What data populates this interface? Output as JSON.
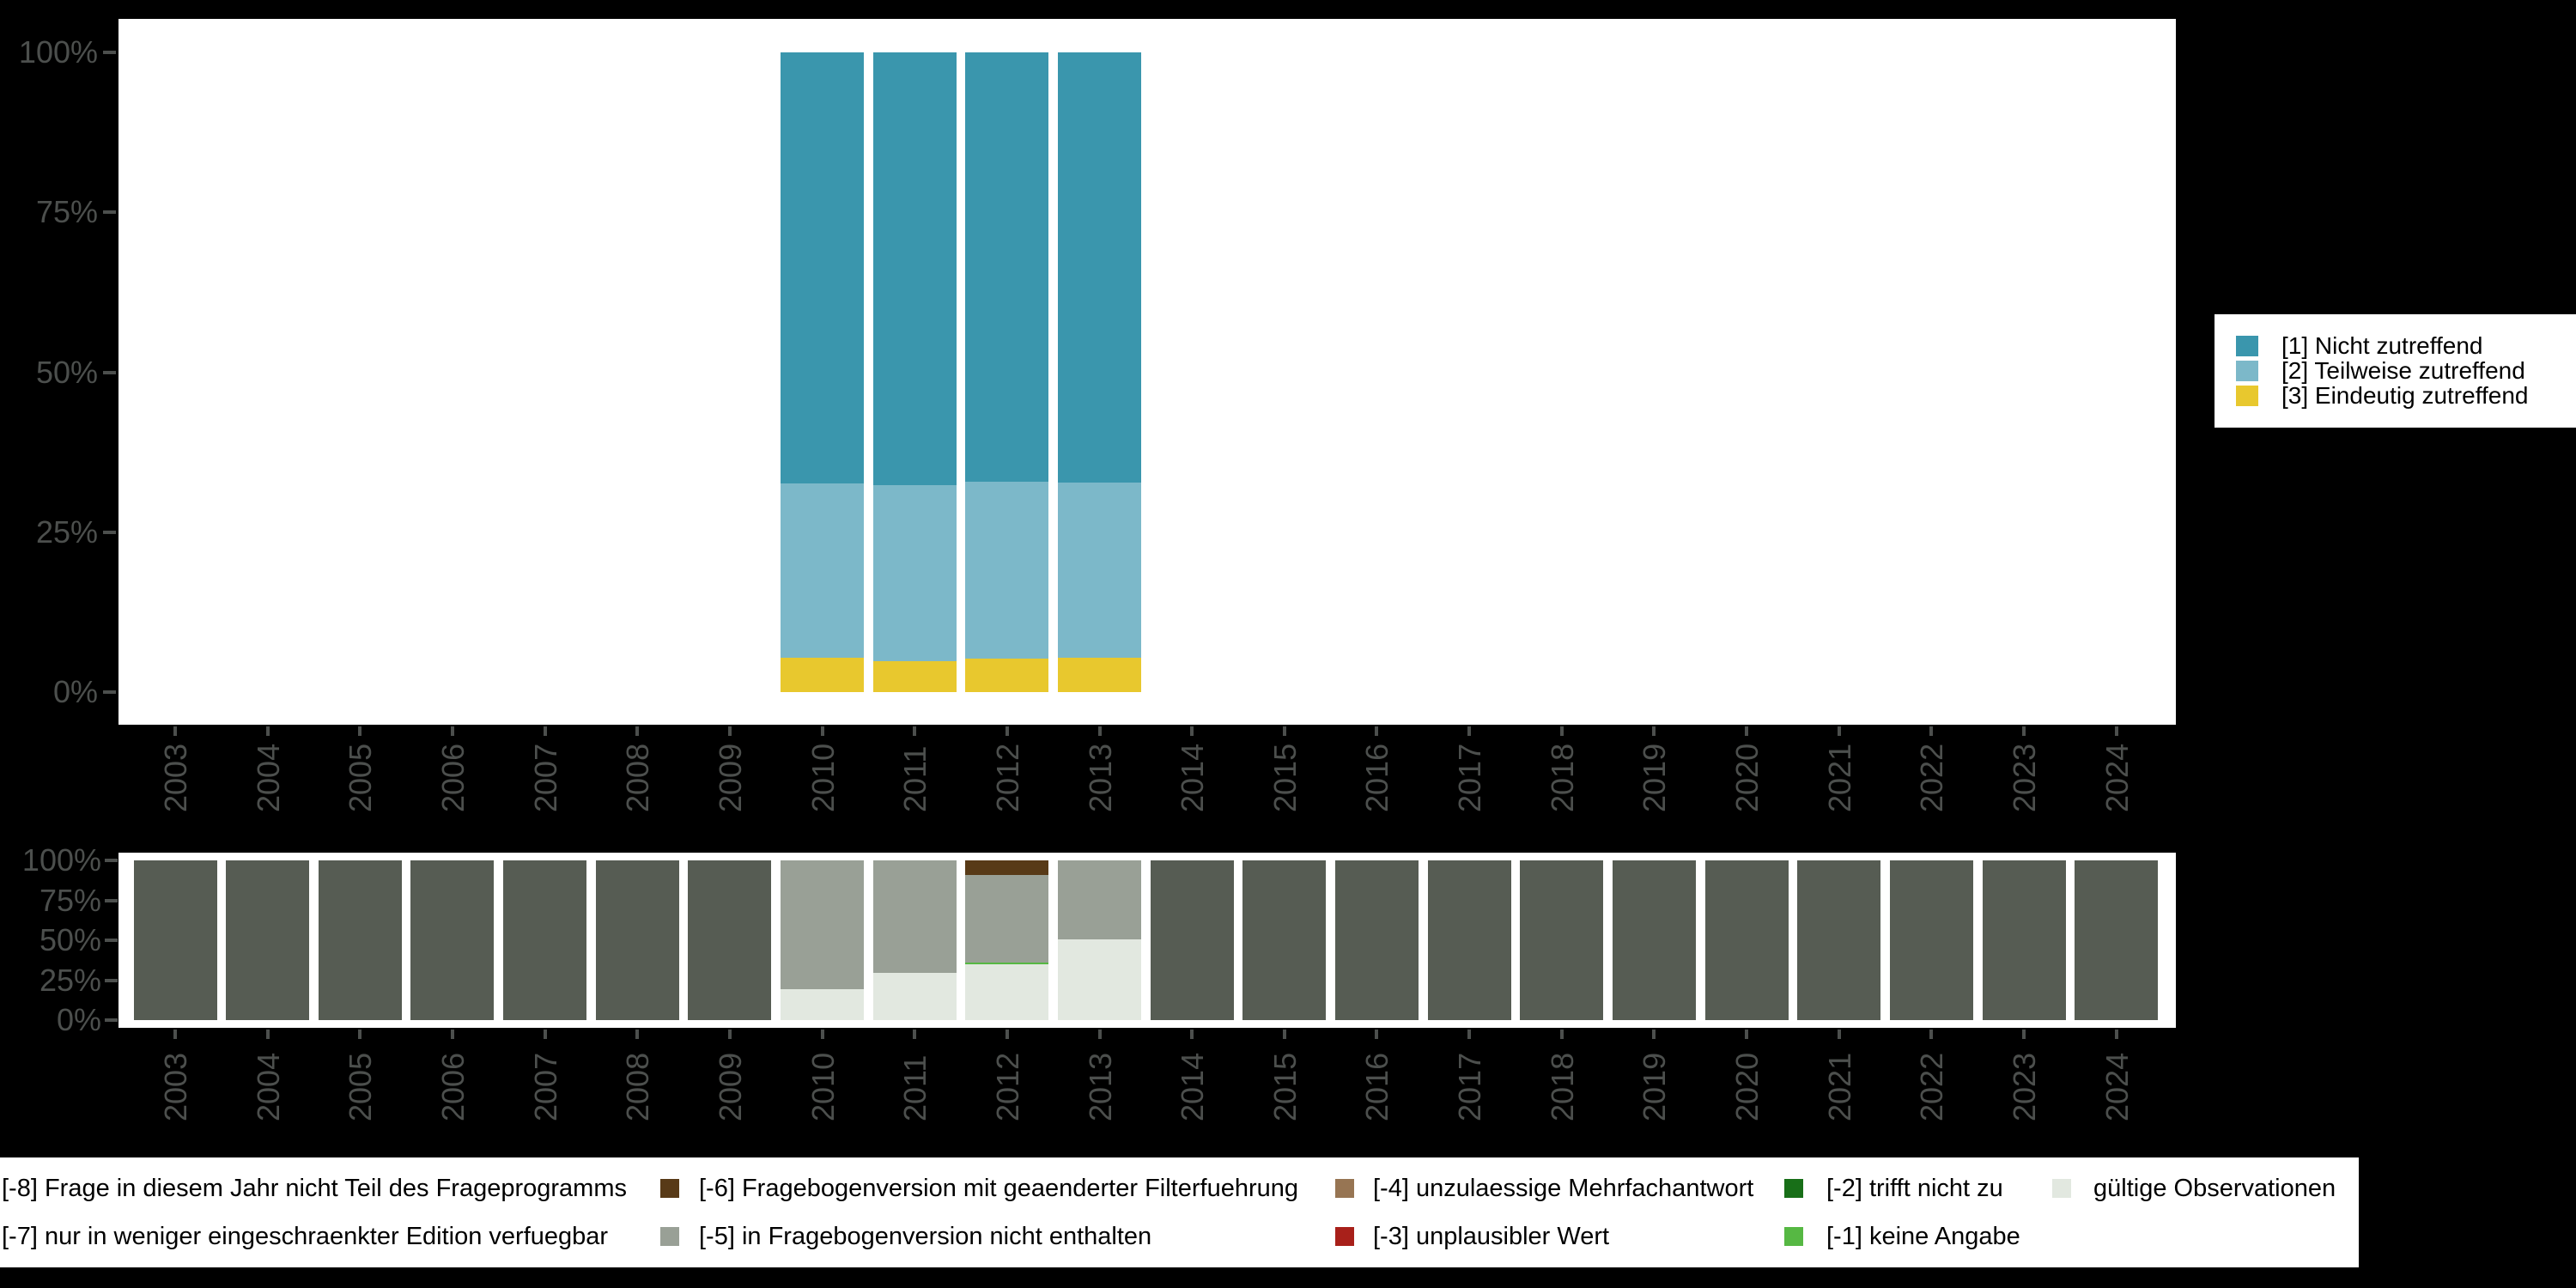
{
  "background": "#000000",
  "axis_text_color": "#4c4f4d",
  "palette": {
    "1": "#3a96ad",
    "2": "#7cb8c9",
    "3": "#e8c82e",
    "-8": "#565c53",
    "-6": "#583a17",
    "-5": "#99a096",
    "-4": "#977553",
    "-3": "#a8201a",
    "-2": "#186f18",
    "-1": "#56b843",
    "valid": "#e2e8e0"
  },
  "chart_data": [
    {
      "type": "bar",
      "subtype": "stacked-percent",
      "title": "",
      "xlabel": "",
      "ylabel": "",
      "grid": false,
      "legend_position": "right",
      "ylim": [
        0,
        100
      ],
      "y_ticks": [
        "0%",
        "25%",
        "50%",
        "75%",
        "100%"
      ],
      "categories": [
        "2003",
        "2004",
        "2005",
        "2006",
        "2007",
        "2008",
        "2009",
        "2010",
        "2011",
        "2012",
        "2013",
        "2014",
        "2015",
        "2016",
        "2017",
        "2018",
        "2019",
        "2020",
        "2021",
        "2022",
        "2023",
        "2024"
      ],
      "stacks": {
        "2010": [
          [
            "3",
            5.4
          ],
          [
            "2",
            27.2
          ],
          [
            "1",
            67.4
          ]
        ],
        "2011": [
          [
            "3",
            4.8
          ],
          [
            "2",
            27.5
          ],
          [
            "1",
            67.7
          ]
        ],
        "2012": [
          [
            "3",
            5.2
          ],
          [
            "2",
            27.7
          ],
          [
            "1",
            67.1
          ]
        ],
        "2013": [
          [
            "3",
            5.4
          ],
          [
            "2",
            27.3
          ],
          [
            "1",
            67.3
          ]
        ]
      },
      "legend": [
        {
          "key": "1",
          "label": "[1] Nicht zutreffend"
        },
        {
          "key": "2",
          "label": "[2] Teilweise zutreffend"
        },
        {
          "key": "3",
          "label": "[3] Eindeutig zutreffend"
        }
      ]
    },
    {
      "type": "bar",
      "subtype": "stacked-percent",
      "title": "",
      "xlabel": "",
      "ylabel": "",
      "grid": false,
      "legend_position": "bottom",
      "ylim": [
        0,
        100
      ],
      "y_ticks": [
        "0%",
        "25%",
        "50%",
        "75%",
        "100%"
      ],
      "categories": [
        "2003",
        "2004",
        "2005",
        "2006",
        "2007",
        "2008",
        "2009",
        "2010",
        "2011",
        "2012",
        "2013",
        "2014",
        "2015",
        "2016",
        "2017",
        "2018",
        "2019",
        "2020",
        "2021",
        "2022",
        "2023",
        "2024"
      ],
      "stacks": {
        "2003": [
          [
            "-8",
            100
          ]
        ],
        "2004": [
          [
            "-8",
            100
          ]
        ],
        "2005": [
          [
            "-8",
            100
          ]
        ],
        "2006": [
          [
            "-8",
            100
          ]
        ],
        "2007": [
          [
            "-8",
            100
          ]
        ],
        "2008": [
          [
            "-8",
            100
          ]
        ],
        "2009": [
          [
            "-8",
            100
          ]
        ],
        "2010": [
          [
            "valid",
            19.4
          ],
          [
            "-5",
            80.6
          ]
        ],
        "2011": [
          [
            "valid",
            29.4
          ],
          [
            "-5",
            70.6
          ]
        ],
        "2012": [
          [
            "valid",
            35.1
          ],
          [
            "-1",
            1.1
          ],
          [
            "-5",
            54.5
          ],
          [
            "-6",
            9.3
          ]
        ],
        "2013": [
          [
            "valid",
            50.4
          ],
          [
            "-5",
            49.6
          ]
        ],
        "2014": [
          [
            "-8",
            100
          ]
        ],
        "2015": [
          [
            "-8",
            100
          ]
        ],
        "2016": [
          [
            "-8",
            100
          ]
        ],
        "2017": [
          [
            "-8",
            100
          ]
        ],
        "2018": [
          [
            "-8",
            100
          ]
        ],
        "2019": [
          [
            "-8",
            100
          ]
        ],
        "2020": [
          [
            "-8",
            100
          ]
        ],
        "2021": [
          [
            "-8",
            100
          ]
        ],
        "2022": [
          [
            "-8",
            100
          ]
        ],
        "2023": [
          [
            "-8",
            100
          ]
        ],
        "2024": [
          [
            "-8",
            100
          ]
        ]
      },
      "legend_columns": [
        {
          "items": [
            {
              "key": "-8",
              "label": "[-8] Frage in diesem Jahr nicht Teil des Frageprogramms",
              "swatch_visible": false
            },
            {
              "key": "-7",
              "label": "[-7] nur in weniger eingeschraenkter Edition verfuegbar",
              "swatch_visible": false
            }
          ]
        },
        {
          "items": [
            {
              "key": "-6",
              "label": "[-6] Fragebogenversion mit geaenderter Filterfuehrung",
              "swatch_visible": true
            },
            {
              "key": "-5",
              "label": "[-5] in Fragebogenversion nicht enthalten",
              "swatch_visible": true
            }
          ]
        },
        {
          "items": [
            {
              "key": "-4",
              "label": "[-4] unzulaessige Mehrfachantwort",
              "swatch_visible": true
            },
            {
              "key": "-3",
              "label": "[-3] unplausibler Wert",
              "swatch_visible": true
            }
          ]
        },
        {
          "items": [
            {
              "key": "-2",
              "label": "[-2] trifft nicht zu",
              "swatch_visible": true
            },
            {
              "key": "-1",
              "label": "[-1] keine Angabe",
              "swatch_visible": true
            }
          ]
        },
        {
          "items": [
            {
              "key": "valid",
              "label": "gültige Observationen",
              "swatch_visible": true
            }
          ]
        }
      ]
    }
  ]
}
